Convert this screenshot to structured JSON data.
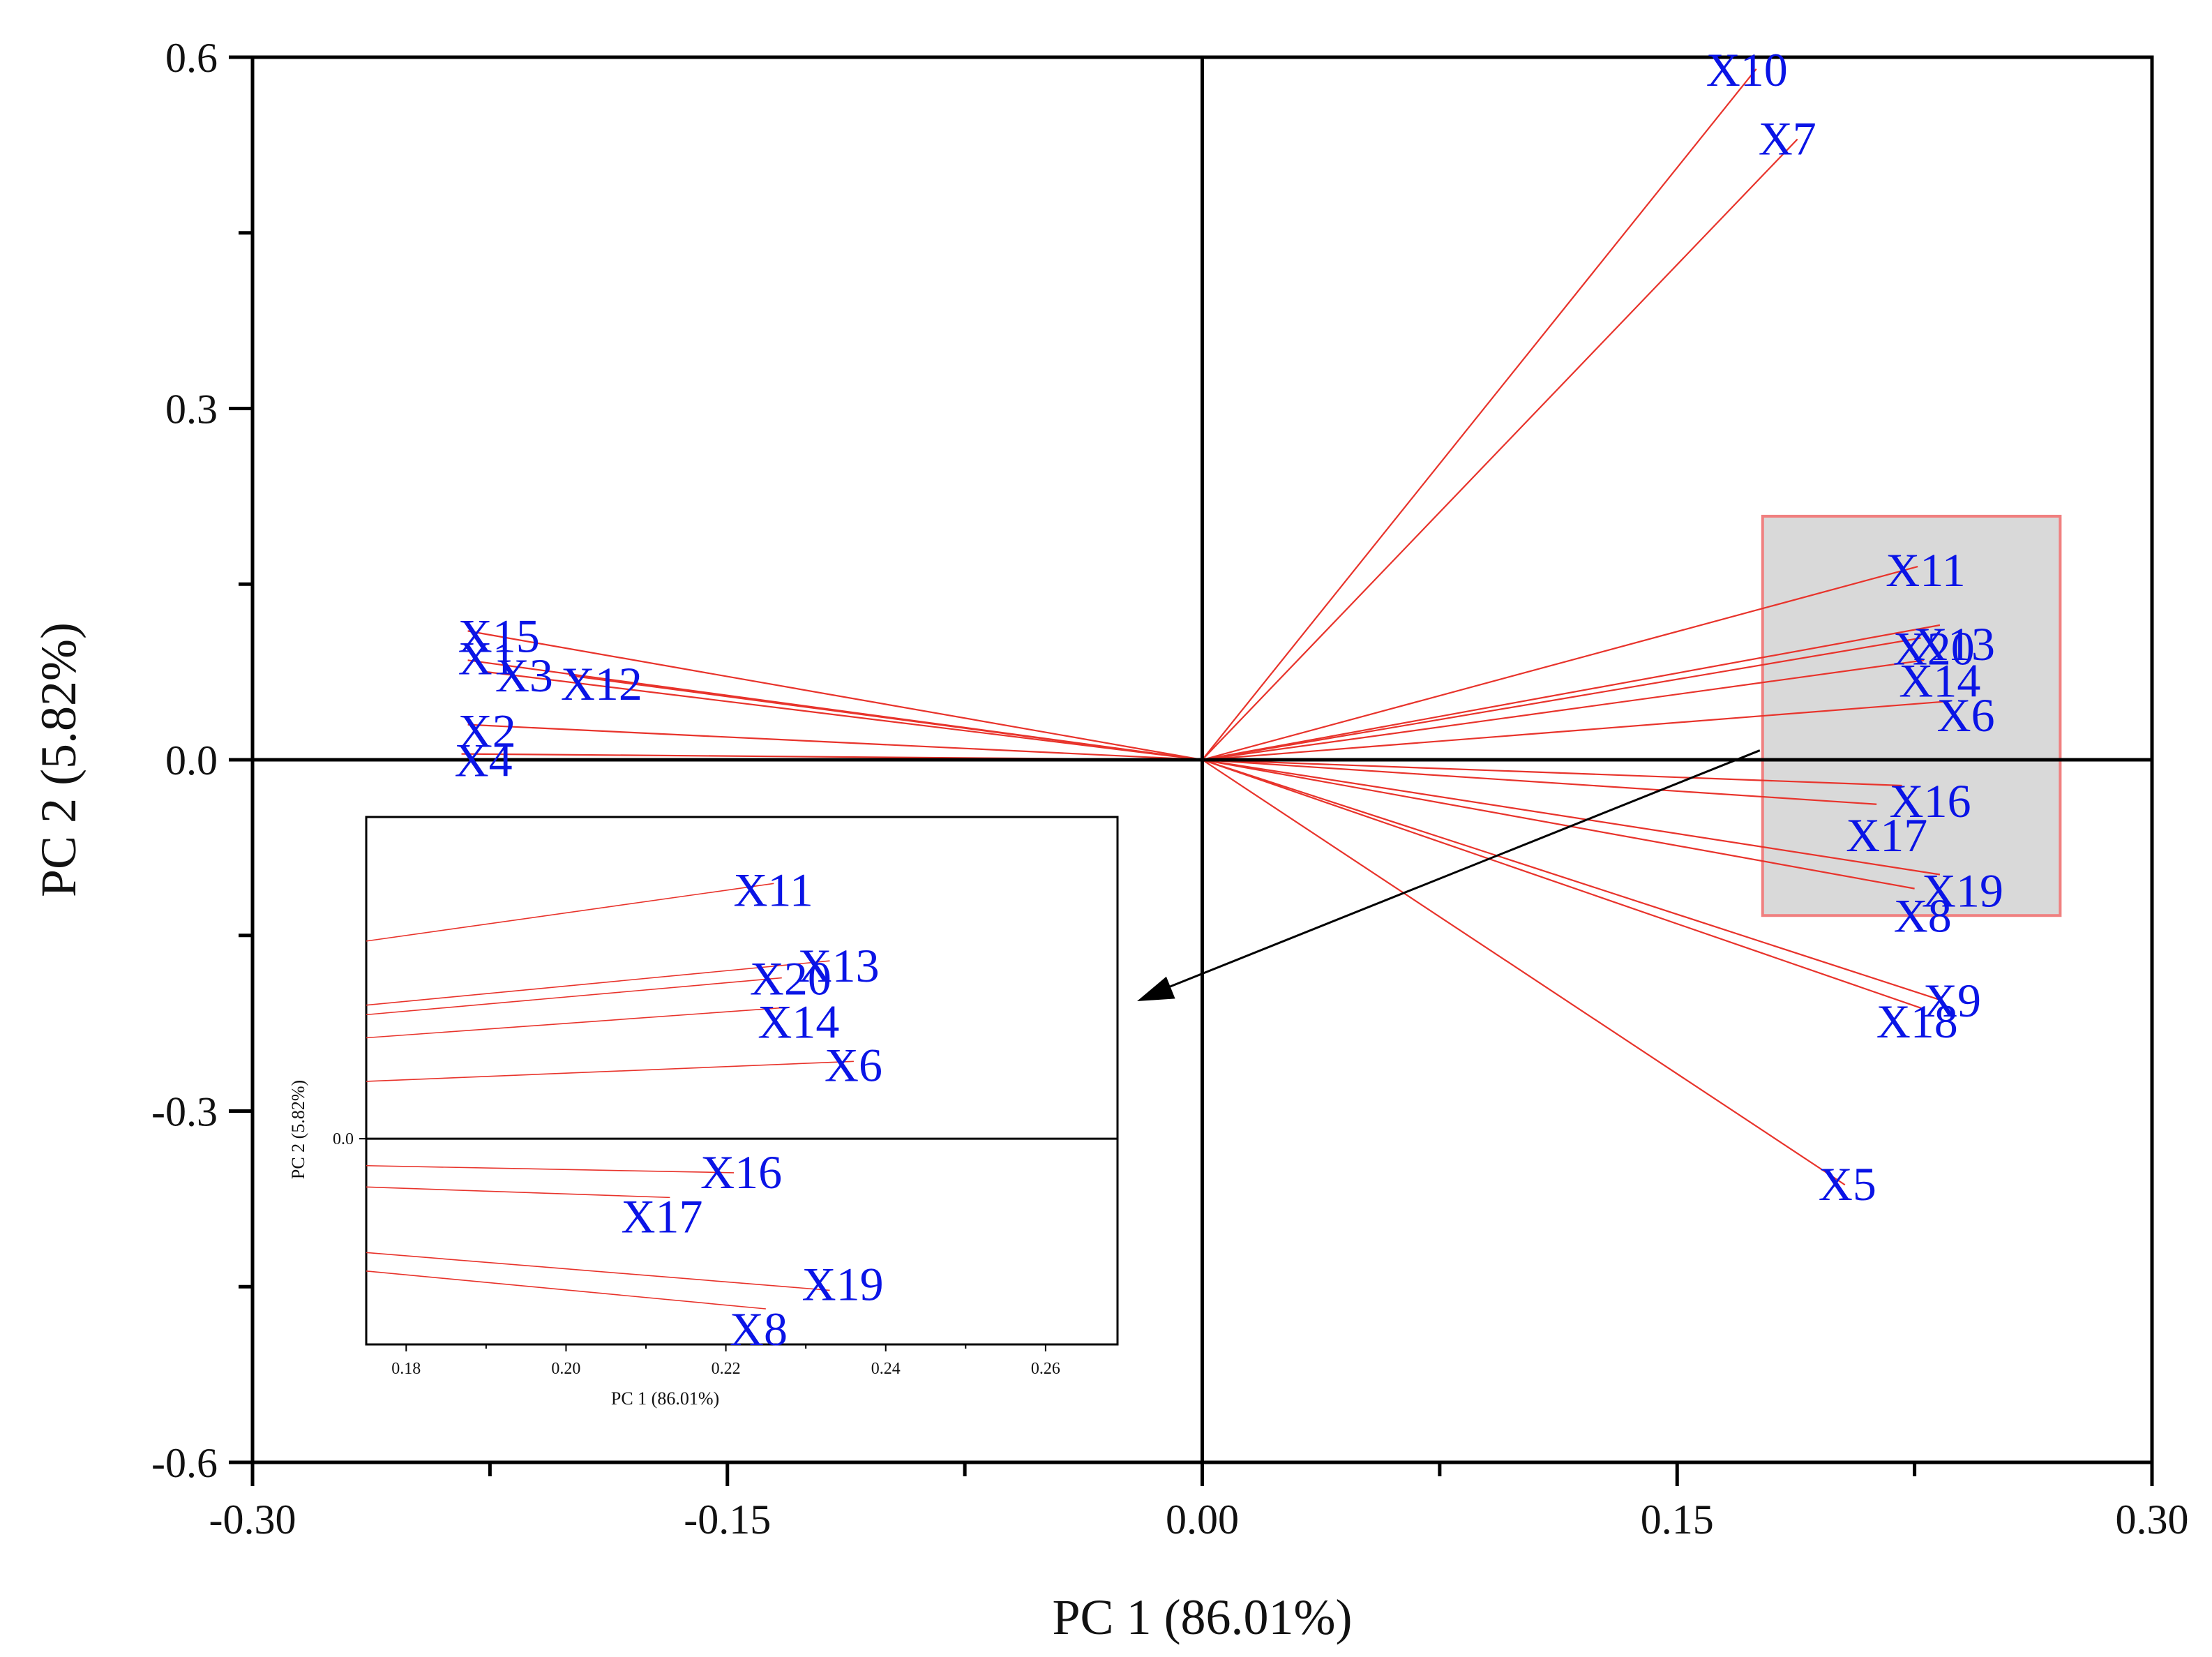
{
  "chart_data": {
    "type": "biplot",
    "title": "",
    "xlabel": "PC 1 (86.01%)",
    "ylabel": "PC 2 (5.82%)",
    "xlim": [
      -0.3,
      0.3
    ],
    "ylim": [
      -0.6,
      0.6
    ],
    "x_ticks": [
      {
        "value": -0.3,
        "label": "-0.30"
      },
      {
        "value": -0.15,
        "label": "-0.15"
      },
      {
        "value": 0.0,
        "label": "0.00"
      },
      {
        "value": 0.15,
        "label": "0.15"
      },
      {
        "value": 0.3,
        "label": "0.30"
      }
    ],
    "y_ticks": [
      {
        "value": 0.6,
        "label": "0.6"
      },
      {
        "value": 0.3,
        "label": "0.3"
      },
      {
        "value": 0.0,
        "label": "0.0"
      },
      {
        "value": -0.3,
        "label": "-0.3"
      },
      {
        "value": -0.6,
        "label": "-0.6"
      }
    ],
    "loadings": [
      {
        "name": "X1",
        "x": -0.232,
        "y": 0.085
      },
      {
        "name": "X2",
        "x": -0.232,
        "y": 0.03
      },
      {
        "name": "X3",
        "x": -0.226,
        "y": 0.075
      },
      {
        "name": "X4",
        "x": -0.234,
        "y": 0.005
      },
      {
        "name": "X5",
        "x": 0.203,
        "y": -0.363
      },
      {
        "name": "X6",
        "x": 0.236,
        "y": 0.05
      },
      {
        "name": "X7",
        "x": 0.188,
        "y": 0.53
      },
      {
        "name": "X8",
        "x": 0.225,
        "y": -0.11
      },
      {
        "name": "X9",
        "x": 0.233,
        "y": -0.205
      },
      {
        "name": "X10",
        "x": 0.175,
        "y": 0.59
      },
      {
        "name": "X11",
        "x": 0.226,
        "y": 0.165
      },
      {
        "name": "X12",
        "x": -0.2,
        "y": 0.072
      },
      {
        "name": "X13",
        "x": 0.233,
        "y": 0.115
      },
      {
        "name": "X14",
        "x": 0.228,
        "y": 0.085
      },
      {
        "name": "X15",
        "x": -0.232,
        "y": 0.11
      },
      {
        "name": "X16",
        "x": 0.221,
        "y": -0.022
      },
      {
        "name": "X17",
        "x": 0.213,
        "y": -0.038
      },
      {
        "name": "X18",
        "x": 0.227,
        "y": -0.212
      },
      {
        "name": "X19",
        "x": 0.233,
        "y": -0.098
      },
      {
        "name": "X20",
        "x": 0.227,
        "y": 0.104
      }
    ],
    "highlight_region": {
      "xlim": [
        0.177,
        0.271
      ],
      "ylim": [
        -0.133,
        0.208
      ]
    },
    "inset": {
      "xlabel": "PC 1 (86.01%)",
      "ylabel": "PC 2 (5.82%)",
      "xlim": [
        0.175,
        0.269
      ],
      "ylim": [
        -0.133,
        0.208
      ],
      "x_ticks": [
        {
          "value": 0.18,
          "label": "0.18"
        },
        {
          "value": 0.2,
          "label": "0.20"
        },
        {
          "value": 0.22,
          "label": "0.22"
        },
        {
          "value": 0.24,
          "label": "0.24"
        },
        {
          "value": 0.26,
          "label": "0.26"
        }
      ],
      "y_ticks": [
        {
          "value": 0.0,
          "label": "0.0"
        }
      ],
      "labels": [
        "X11",
        "X13",
        "X20",
        "X14",
        "X6",
        "X16",
        "X17",
        "X19",
        "X8"
      ]
    },
    "colors": {
      "vector": "#e8332b",
      "label": "#0a14e6",
      "highlight_fill": "#d9d9d9",
      "highlight_stroke": "#f08080",
      "axis": "#000000"
    }
  }
}
